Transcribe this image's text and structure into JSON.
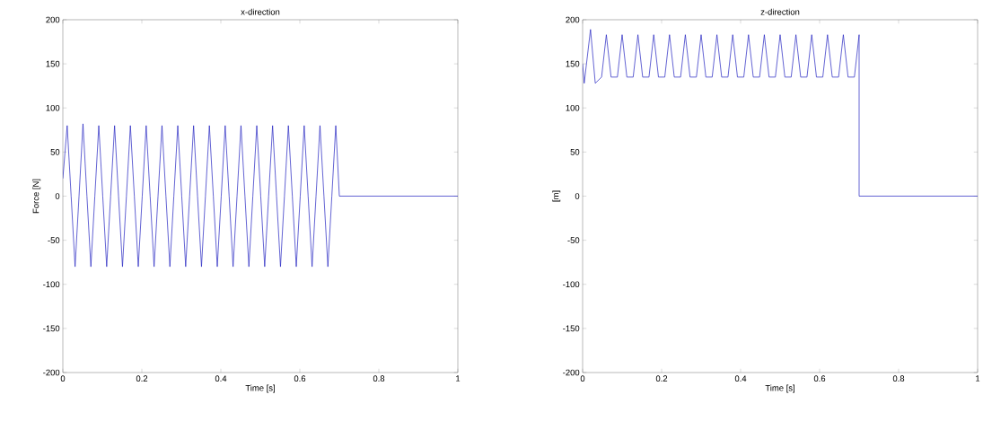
{
  "chart_data": [
    {
      "type": "line",
      "title": "x-direction",
      "xlabel": "Time [s]",
      "ylabel": "Force [N]",
      "xlim": [
        0,
        1
      ],
      "ylim": [
        -200,
        200
      ],
      "xticks": [
        0,
        0.2,
        0.4,
        0.6,
        0.8,
        1
      ],
      "yticks": [
        -200,
        -150,
        -100,
        -50,
        0,
        50,
        100,
        150,
        200
      ],
      "grid": false,
      "color": "#2020c0",
      "x": [
        0,
        0.011,
        0.021,
        0.031,
        0.041,
        0.051,
        0.061,
        0.071,
        0.081,
        0.091,
        0.101,
        0.111,
        0.121,
        0.131,
        0.141,
        0.151,
        0.161,
        0.171,
        0.181,
        0.191,
        0.201,
        0.211,
        0.221,
        0.231,
        0.241,
        0.251,
        0.261,
        0.271,
        0.281,
        0.291,
        0.301,
        0.311,
        0.321,
        0.331,
        0.341,
        0.351,
        0.361,
        0.371,
        0.381,
        0.391,
        0.401,
        0.411,
        0.421,
        0.431,
        0.441,
        0.451,
        0.461,
        0.471,
        0.481,
        0.491,
        0.501,
        0.511,
        0.521,
        0.531,
        0.541,
        0.551,
        0.561,
        0.571,
        0.581,
        0.591,
        0.601,
        0.611,
        0.621,
        0.631,
        0.641,
        0.651,
        0.661,
        0.671,
        0.681,
        0.691,
        0.7,
        1
      ],
      "values": [
        20,
        80,
        0,
        -80,
        0,
        82,
        0,
        -80,
        0,
        80,
        0,
        -80,
        0,
        80,
        0,
        -80,
        0,
        80,
        0,
        -80,
        0,
        80,
        0,
        -80,
        0,
        80,
        0,
        -80,
        0,
        80,
        0,
        -80,
        0,
        80,
        0,
        -80,
        0,
        80,
        0,
        -80,
        0,
        80,
        0,
        -80,
        0,
        80,
        0,
        -80,
        0,
        80,
        0,
        -80,
        0,
        80,
        0,
        -80,
        0,
        80,
        0,
        -80,
        0,
        80,
        0,
        -80,
        0,
        80,
        0,
        -80,
        0,
        80,
        0,
        0
      ]
    },
    {
      "type": "line",
      "title": "z-direction",
      "xlabel": "Time [s]",
      "ylabel": "[m]",
      "xlim": [
        0,
        1
      ],
      "ylim": [
        -200,
        200
      ],
      "xticks": [
        0,
        0.2,
        0.4,
        0.6,
        0.8,
        1
      ],
      "yticks": [
        -200,
        -150,
        -100,
        -50,
        0,
        50,
        100,
        150,
        200
      ],
      "grid": false,
      "color": "#2020c0",
      "x": [
        0,
        0.004,
        0.02,
        0.032,
        0.048,
        0.06,
        0.072,
        0.088,
        0.1,
        0.112,
        0.128,
        0.14,
        0.152,
        0.168,
        0.18,
        0.192,
        0.208,
        0.22,
        0.232,
        0.248,
        0.26,
        0.272,
        0.288,
        0.3,
        0.312,
        0.328,
        0.34,
        0.352,
        0.368,
        0.38,
        0.392,
        0.408,
        0.42,
        0.432,
        0.448,
        0.46,
        0.472,
        0.488,
        0.5,
        0.512,
        0.528,
        0.54,
        0.552,
        0.568,
        0.58,
        0.592,
        0.608,
        0.62,
        0.632,
        0.648,
        0.66,
        0.672,
        0.688,
        0.7,
        0.7,
        1
      ],
      "values": [
        150,
        128,
        189,
        128,
        135,
        183,
        135,
        135,
        183,
        135,
        135,
        183,
        135,
        135,
        183,
        135,
        135,
        183,
        135,
        135,
        183,
        135,
        135,
        183,
        135,
        135,
        183,
        135,
        135,
        183,
        135,
        135,
        183,
        135,
        135,
        183,
        135,
        135,
        183,
        135,
        135,
        183,
        135,
        135,
        183,
        135,
        135,
        183,
        135,
        135,
        183,
        135,
        135,
        183,
        0,
        0
      ]
    }
  ]
}
